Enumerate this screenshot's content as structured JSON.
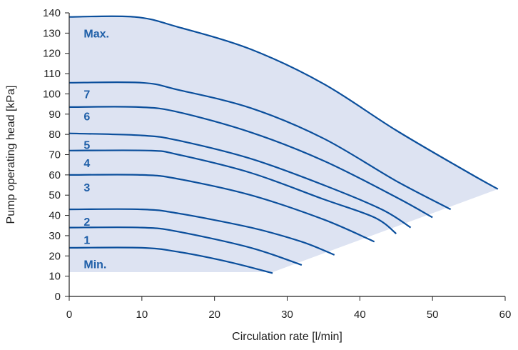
{
  "chart_data": {
    "type": "line",
    "xlabel": "Circulation rate [l/min]",
    "ylabel": "Pump operating head [kPa]",
    "xlim": [
      0,
      60
    ],
    "ylim": [
      0,
      140
    ],
    "x_ticks": [
      0,
      10,
      20,
      30,
      40,
      50,
      60
    ],
    "y_ticks": [
      0,
      10,
      20,
      30,
      40,
      50,
      60,
      70,
      80,
      90,
      100,
      110,
      120,
      130,
      140
    ],
    "grid": false,
    "colors": {
      "curve": "#0b4f9c",
      "label": "#1f5fa8",
      "fill": "#dde3f2",
      "axis": "#222222"
    },
    "operating_area": [
      [
        0,
        138
      ],
      [
        9,
        138
      ],
      [
        15,
        133
      ],
      [
        25,
        122
      ],
      [
        35,
        105
      ],
      [
        45,
        82
      ],
      [
        55,
        61
      ],
      [
        59,
        53
      ],
      [
        28,
        12
      ],
      [
        0,
        12
      ]
    ],
    "series": [
      {
        "name": "Max.",
        "points": [
          [
            0,
            138
          ],
          [
            9,
            138
          ],
          [
            15,
            133
          ],
          [
            25,
            122
          ],
          [
            35,
            105
          ],
          [
            45,
            82
          ],
          [
            55,
            61
          ],
          [
            59,
            53
          ]
        ]
      },
      {
        "name": "7",
        "points": [
          [
            0,
            105.5
          ],
          [
            10,
            105.5
          ],
          [
            15,
            102
          ],
          [
            25,
            93
          ],
          [
            35,
            78
          ],
          [
            45,
            57
          ],
          [
            52.5,
            43
          ]
        ]
      },
      {
        "name": "6",
        "points": [
          [
            0,
            93.5
          ],
          [
            9.5,
            93.5
          ],
          [
            15,
            91
          ],
          [
            25,
            81
          ],
          [
            35,
            67
          ],
          [
            45,
            49
          ],
          [
            50,
            39
          ]
        ]
      },
      {
        "name": "5",
        "points": [
          [
            0,
            80.5
          ],
          [
            10,
            79.5
          ],
          [
            15,
            77
          ],
          [
            25,
            68
          ],
          [
            35,
            55
          ],
          [
            43,
            43
          ],
          [
            47,
            34
          ]
        ]
      },
      {
        "name": "4",
        "points": [
          [
            0,
            72
          ],
          [
            11,
            72
          ],
          [
            15,
            70
          ],
          [
            25,
            61
          ],
          [
            35,
            48
          ],
          [
            42,
            39
          ],
          [
            45,
            31
          ]
        ]
      },
      {
        "name": "3",
        "points": [
          [
            0,
            60
          ],
          [
            10,
            60
          ],
          [
            15,
            58
          ],
          [
            25,
            50
          ],
          [
            35,
            38
          ],
          [
            42,
            27
          ]
        ]
      },
      {
        "name": "2",
        "points": [
          [
            0,
            43
          ],
          [
            10,
            43
          ],
          [
            15,
            41
          ],
          [
            25,
            34
          ],
          [
            32,
            27
          ],
          [
            36.5,
            20.5
          ]
        ]
      },
      {
        "name": "1",
        "points": [
          [
            0,
            34
          ],
          [
            10,
            34
          ],
          [
            15,
            32
          ],
          [
            25,
            24
          ],
          [
            32,
            15.5
          ]
        ]
      },
      {
        "name": "Min.",
        "points": [
          [
            0,
            24
          ],
          [
            10,
            24
          ],
          [
            15,
            22
          ],
          [
            22,
            17
          ],
          [
            28,
            11.5
          ]
        ]
      }
    ],
    "labels": [
      {
        "text": "Max.",
        "x": 2,
        "y": 130
      },
      {
        "text": "7",
        "x": 2,
        "y": 100
      },
      {
        "text": "6",
        "x": 2,
        "y": 89
      },
      {
        "text": "5",
        "x": 2,
        "y": 75
      },
      {
        "text": "4",
        "x": 2,
        "y": 66
      },
      {
        "text": "3",
        "x": 2,
        "y": 54
      },
      {
        "text": "2",
        "x": 2,
        "y": 37
      },
      {
        "text": "1",
        "x": 2,
        "y": 28
      },
      {
        "text": "Min.",
        "x": 2,
        "y": 16
      }
    ]
  }
}
